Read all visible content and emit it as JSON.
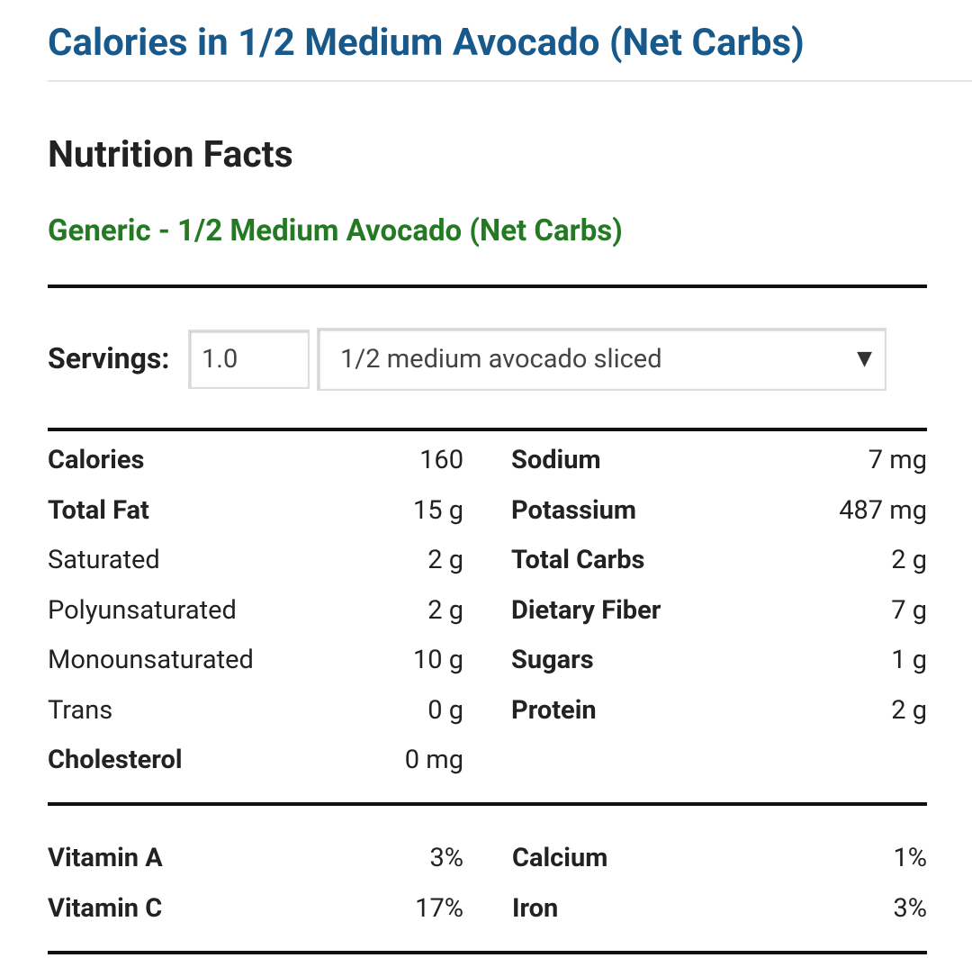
{
  "header": {
    "title": "Calories in 1/2 Medium Avocado (Net Carbs)"
  },
  "heading": "Nutrition Facts",
  "food_name": "Generic - 1/2 Medium Avocado (Net Carbs)",
  "servings": {
    "label": "Servings:",
    "amount": "1.0",
    "unit": "1/2 medium avocado sliced"
  },
  "nutrients": {
    "left": [
      [
        "Calories",
        "160"
      ],
      [
        "Total Fat",
        "15 g"
      ],
      [
        "Saturated",
        "2 g"
      ],
      [
        "Polyunsaturated",
        "2 g"
      ],
      [
        "Monounsaturated",
        "10 g"
      ],
      [
        "Trans",
        "0 g"
      ],
      [
        "Cholesterol",
        "0 mg"
      ]
    ],
    "right": [
      [
        "Sodium",
        "7 mg"
      ],
      [
        "Potassium",
        "487 mg"
      ],
      [
        "Total Carbs",
        "2 g"
      ],
      [
        "Dietary Fiber",
        "7 g"
      ],
      [
        "Sugars",
        "1 g"
      ],
      [
        "Protein",
        "2 g"
      ]
    ]
  },
  "vitamins": {
    "left": [
      [
        "Vitamin A",
        "3%"
      ],
      [
        "Vitamin C",
        "17%"
      ]
    ],
    "right": [
      [
        "Calcium",
        "1%"
      ],
      [
        "Iron",
        "3%"
      ]
    ]
  }
}
